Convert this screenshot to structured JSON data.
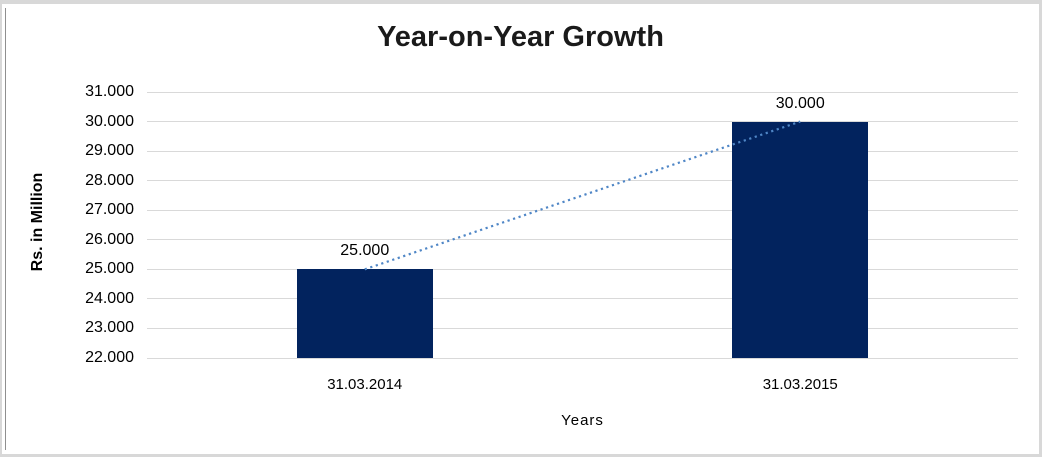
{
  "window": {
    "frame_color": "#d8d8d8",
    "left_accent_color": "#8f8f8f"
  },
  "chart_data": {
    "type": "bar",
    "title": "Year-on-Year Growth",
    "xlabel": "Years",
    "ylabel": "Rs. in Million",
    "categories": [
      "31.03.2014",
      "31.03.2015"
    ],
    "values": [
      25000,
      30000
    ],
    "data_labels": [
      "25.000",
      "30.000"
    ],
    "ylim": [
      22000,
      31000
    ],
    "y_tick_step": 1000,
    "y_ticks": [
      {
        "value": 22000,
        "label": "22.000"
      },
      {
        "value": 23000,
        "label": "23.000"
      },
      {
        "value": 24000,
        "label": "24.000"
      },
      {
        "value": 25000,
        "label": "25.000"
      },
      {
        "value": 26000,
        "label": "26.000"
      },
      {
        "value": 27000,
        "label": "27.000"
      },
      {
        "value": 28000,
        "label": "28.000"
      },
      {
        "value": 29000,
        "label": "29.000"
      },
      {
        "value": 30000,
        "label": "30.000"
      },
      {
        "value": 31000,
        "label": "31.000"
      }
    ],
    "grid": true,
    "legend": "none",
    "colors": {
      "bar": "#02235e",
      "gridline": "#d9d9d9",
      "trendline": "#4f86c6",
      "text": "#000000",
      "title": "#1a1a1a"
    },
    "trendline": {
      "style": "dotted",
      "from": {
        "category_index": 0,
        "value": 25000
      },
      "to": {
        "category_index": 1,
        "value": 30000
      }
    }
  }
}
